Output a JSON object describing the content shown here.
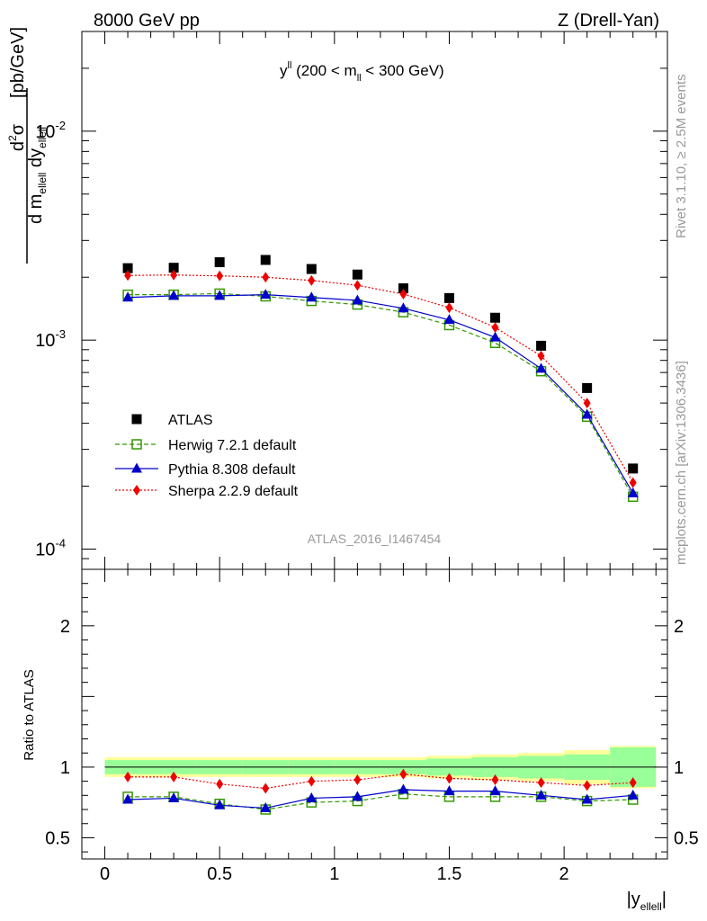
{
  "header": {
    "left": "8000 GeV pp",
    "right": "Z (Drell-Yan)"
  },
  "side_labels": {
    "rivet": "Rivet 3.1.10, ≥ 2.5M events",
    "mcplots": "mcplots.cern.ch [arXiv:1306.3436]"
  },
  "main_panel": {
    "title": "y^ll (200 < m_ll < 300 GeV)",
    "ylabel": "d²σ / d m_ellell dy_ellell [pb/GeV]",
    "watermark": "ATLAS_2016_I1467454",
    "y_scale": "log",
    "ylim": [
      8e-05,
      0.03
    ],
    "y_tick_labels": [
      "10^-4",
      "10^-3",
      "10^-2"
    ]
  },
  "ratio_panel": {
    "ylabel": "Ratio to ATLAS",
    "ylim": [
      0.35,
      2.4
    ],
    "y_tick_labels": [
      "0.5",
      "1",
      "2"
    ]
  },
  "xaxis": {
    "label": "|y_ellell|",
    "xlim": [
      -0.1,
      2.45
    ],
    "tick_labels": [
      "0",
      "0.5",
      "1",
      "1.5",
      "2"
    ]
  },
  "chart_data": {
    "type": "scatter",
    "x": [
      0.1,
      0.3,
      0.5,
      0.7,
      0.9,
      1.1,
      1.3,
      1.5,
      1.7,
      1.9,
      2.1,
      2.3
    ],
    "bin_edges": [
      0.0,
      0.2,
      0.4,
      0.6,
      0.8,
      1.0,
      1.2,
      1.4,
      1.6,
      1.8,
      2.0,
      2.2,
      2.4
    ],
    "legend_position": "lower-left",
    "series": [
      {
        "name": "ATLAS",
        "color": "#000000",
        "marker": "square-filled",
        "line": "none",
        "values": [
          0.00221,
          0.00222,
          0.00236,
          0.00242,
          0.00219,
          0.00206,
          0.00177,
          0.00159,
          0.00128,
          0.00094,
          0.00059,
          0.000243
        ]
      },
      {
        "name": "Herwig 7.2.1 default",
        "color": "#339900",
        "marker": "square-open",
        "line": "dashed",
        "values": [
          0.00165,
          0.00165,
          0.00167,
          0.00162,
          0.00154,
          0.00148,
          0.00136,
          0.00118,
          0.00097,
          0.00071,
          0.00043,
          0.000178
        ]
      },
      {
        "name": "Pythia 8.308 default",
        "color": "#0000cc",
        "marker": "triangle",
        "line": "solid",
        "values": [
          0.0016,
          0.00163,
          0.00163,
          0.00165,
          0.0016,
          0.00155,
          0.00142,
          0.00125,
          0.00103,
          0.00073,
          0.00044,
          0.000185
        ]
      },
      {
        "name": "Sherpa 2.2.9 default",
        "color": "#ee0000",
        "marker": "diamond",
        "line": "dotted",
        "values": [
          0.00204,
          0.00205,
          0.00203,
          0.002,
          0.00193,
          0.00183,
          0.00166,
          0.00143,
          0.00115,
          0.00084,
          0.0005,
          0.000208
        ]
      }
    ],
    "ratio": {
      "reference": 1.0,
      "herwig": [
        0.79,
        0.79,
        0.74,
        0.7,
        0.75,
        0.76,
        0.81,
        0.79,
        0.79,
        0.79,
        0.76,
        0.77
      ],
      "pythia": [
        0.77,
        0.78,
        0.73,
        0.71,
        0.78,
        0.79,
        0.84,
        0.83,
        0.83,
        0.8,
        0.77,
        0.8
      ],
      "sherpa": [
        0.93,
        0.93,
        0.88,
        0.85,
        0.9,
        0.91,
        0.95,
        0.92,
        0.91,
        0.89,
        0.87,
        0.89
      ],
      "band_stat": [
        0.05,
        0.05,
        0.05,
        0.05,
        0.05,
        0.05,
        0.05,
        0.06,
        0.07,
        0.08,
        0.09,
        0.14
      ],
      "band_total": [
        0.07,
        0.07,
        0.07,
        0.07,
        0.07,
        0.07,
        0.07,
        0.08,
        0.09,
        0.1,
        0.12,
        0.15
      ],
      "band_stat_color": "#99ff99",
      "band_total_color": "#ffff99"
    }
  }
}
